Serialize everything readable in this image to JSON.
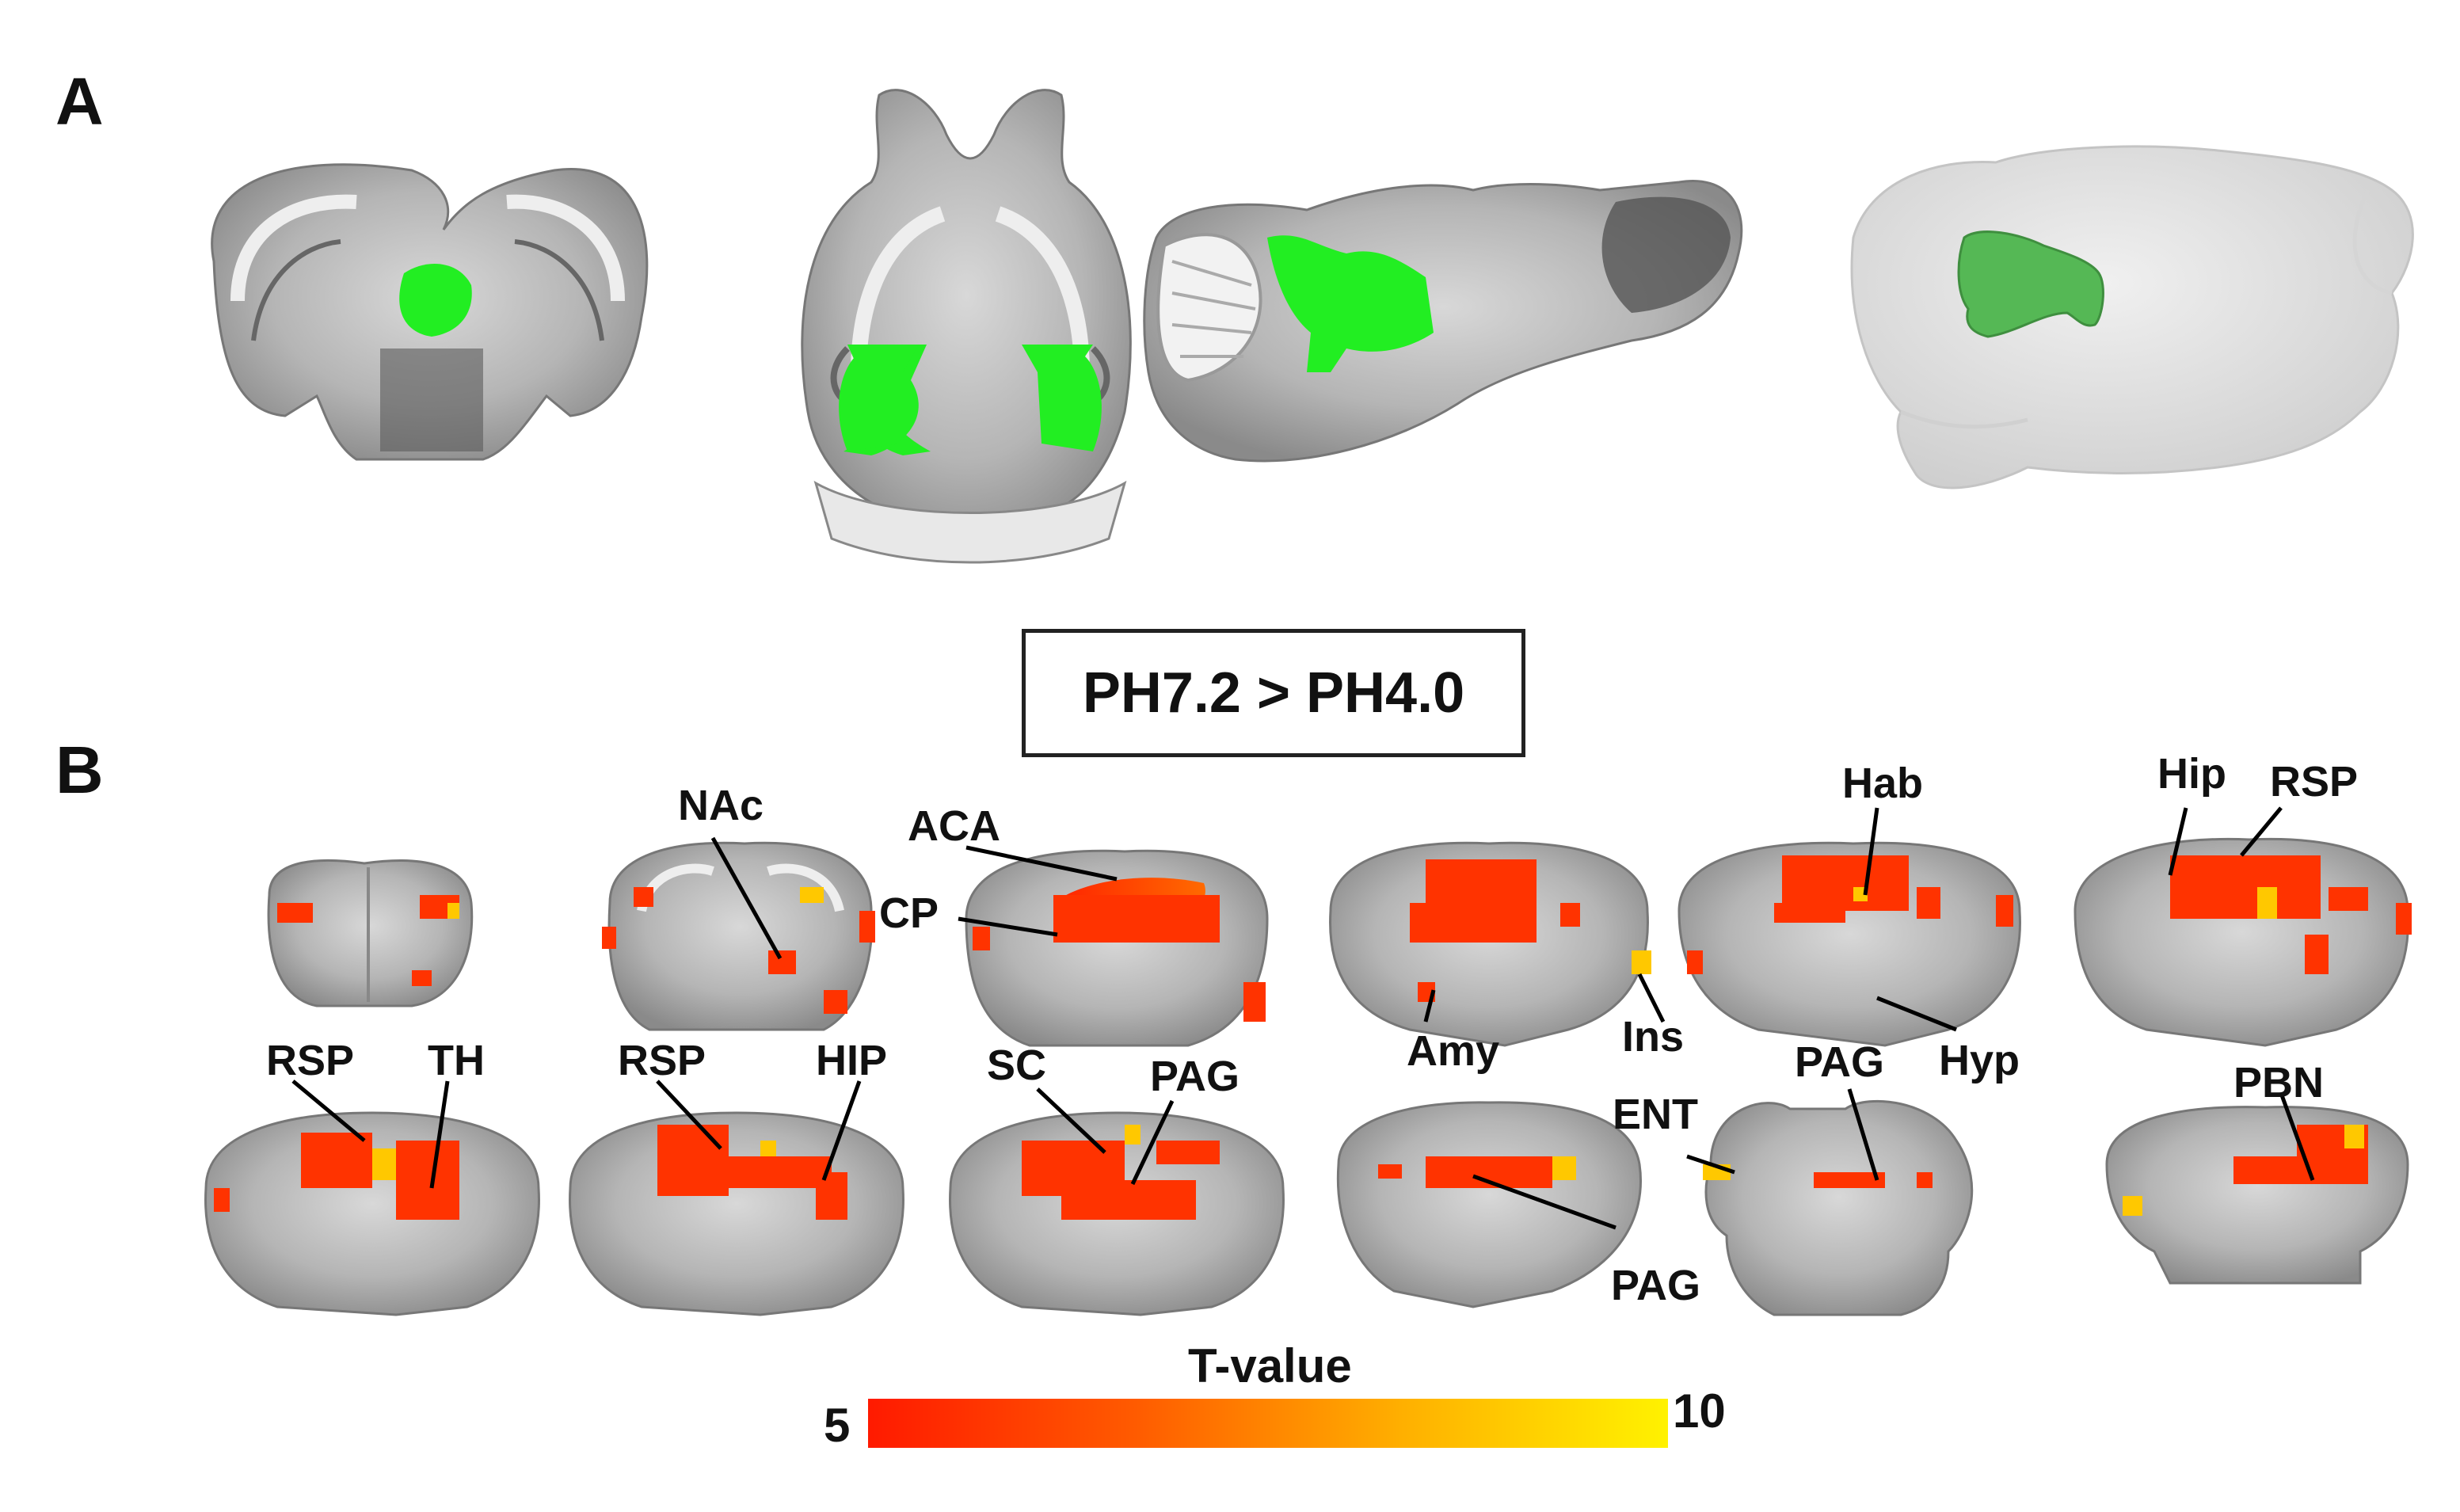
{
  "panels": {
    "a": "A",
    "b": "B"
  },
  "condition": "PH7.2 > PH4.0",
  "labels": {
    "nac": "NAc",
    "aca": "ACA",
    "cp": "CP",
    "hab": "Hab",
    "hip": "Hip",
    "rsp_top": "RSP",
    "amy": "Amy",
    "ins": "Ins",
    "hyp": "Hyp",
    "pag_mid": "PAG",
    "rsp1": "RSP",
    "th": "TH",
    "rsp2": "RSP",
    "hip_caps": "HIP",
    "sc": "SC",
    "pag_a": "PAG",
    "ent": "ENT",
    "pag_b": "PAG",
    "pbn": "PBN"
  },
  "colorbar": {
    "title": "T-value",
    "min": "5",
    "max": "10",
    "colors": [
      "#ff1a00",
      "#ff5a00",
      "#ffb000",
      "#fff200"
    ]
  },
  "colors": {
    "roi": "#22ee22",
    "roi_3d": "#55b855",
    "activation": "#ff3300",
    "activation_hot": "#ffc800"
  }
}
